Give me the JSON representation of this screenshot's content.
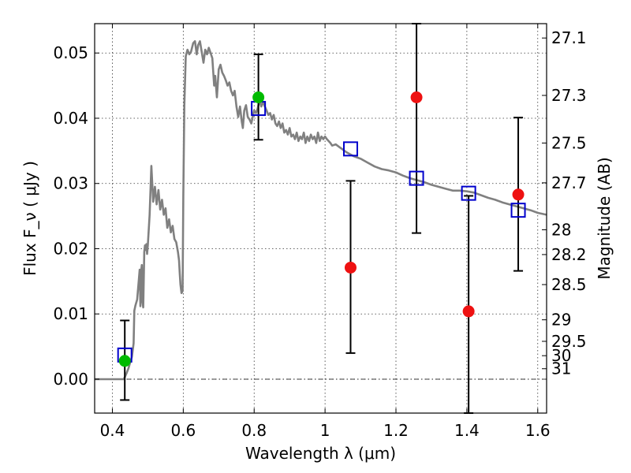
{
  "chart_data": {
    "type": "scatter",
    "title": "",
    "xlabel": "Wavelength  λ (μm)",
    "ylabel": "Flux  F_ν  ( μJy )",
    "ylabel_right": "Magnitude (AB)",
    "xlim": [
      0.35,
      1.625
    ],
    "ylim": [
      -0.0052,
      0.0545
    ],
    "xticks": [
      0.4,
      0.6,
      0.8,
      1.0,
      1.2,
      1.4,
      1.6
    ],
    "xtick_labels": [
      "0.4",
      "0.6",
      "0.8",
      "1",
      "1.2",
      "1.4",
      "1.6"
    ],
    "yticks": [
      0.0,
      0.01,
      0.02,
      0.03,
      0.04,
      0.05
    ],
    "ytick_labels": [
      "0.00",
      "0.01",
      "0.02",
      "0.03",
      "0.04",
      "0.05"
    ],
    "right_ticks": [
      {
        "label": "27.1",
        "flux": 0.0523
      },
      {
        "label": "27.3",
        "flux": 0.0435
      },
      {
        "label": "27.5",
        "flux": 0.0362
      },
      {
        "label": "27.7",
        "flux": 0.0301
      },
      {
        "label": "28",
        "flux": 0.0229
      },
      {
        "label": "28.2",
        "flux": 0.0191
      },
      {
        "label": "28.5",
        "flux": 0.0145
      },
      {
        "label": "29",
        "flux": 0.0091
      },
      {
        "label": "29.5",
        "flux": 0.0058
      },
      {
        "label": "30",
        "flux": 0.0036
      },
      {
        "label": "31",
        "flux": 0.0016
      }
    ],
    "grid": true,
    "zero_line": 0.0,
    "colors": {
      "model": "#808080",
      "model_photometry": "#0000cc",
      "detections": "#00bb00",
      "upper_limits": "#ee1111",
      "errorbar": "#000000"
    },
    "series": [
      {
        "kind": "line",
        "points": [
          [
            0.35,
            0.0
          ],
          [
            0.432,
            0.0
          ],
          [
            0.435,
            0.0003
          ],
          [
            0.44,
            0.0009
          ],
          [
            0.445,
            0.0016
          ],
          [
            0.45,
            0.0025
          ],
          [
            0.455,
            0.0034
          ],
          [
            0.46,
            0.0055
          ],
          [
            0.462,
            0.0105
          ],
          [
            0.465,
            0.0113
          ],
          [
            0.47,
            0.0122
          ],
          [
            0.475,
            0.0155
          ],
          [
            0.477,
            0.0168
          ],
          [
            0.479,
            0.0112
          ],
          [
            0.481,
            0.0165
          ],
          [
            0.483,
            0.0175
          ],
          [
            0.485,
            0.0118
          ],
          [
            0.487,
            0.011
          ],
          [
            0.49,
            0.0195
          ],
          [
            0.492,
            0.0205
          ],
          [
            0.494,
            0.0198
          ],
          [
            0.496,
            0.0207
          ],
          [
            0.498,
            0.0192
          ],
          [
            0.5,
            0.0205
          ],
          [
            0.505,
            0.0252
          ],
          [
            0.51,
            0.0327
          ],
          [
            0.515,
            0.0272
          ],
          [
            0.52,
            0.0295
          ],
          [
            0.525,
            0.0268
          ],
          [
            0.53,
            0.029
          ],
          [
            0.535,
            0.026
          ],
          [
            0.54,
            0.0275
          ],
          [
            0.545,
            0.0252
          ],
          [
            0.55,
            0.0262
          ],
          [
            0.555,
            0.0232
          ],
          [
            0.56,
            0.0245
          ],
          [
            0.565,
            0.0225
          ],
          [
            0.57,
            0.0235
          ],
          [
            0.575,
            0.0215
          ],
          [
            0.58,
            0.021
          ],
          [
            0.585,
            0.0195
          ],
          [
            0.588,
            0.0182
          ],
          [
            0.59,
            0.0162
          ],
          [
            0.592,
            0.0145
          ],
          [
            0.595,
            0.0132
          ],
          [
            0.598,
            0.0135
          ],
          [
            0.6,
            0.028
          ],
          [
            0.603,
            0.042
          ],
          [
            0.607,
            0.0495
          ],
          [
            0.612,
            0.0505
          ],
          [
            0.617,
            0.0498
          ],
          [
            0.622,
            0.0502
          ],
          [
            0.628,
            0.0515
          ],
          [
            0.633,
            0.0518
          ],
          [
            0.638,
            0.0498
          ],
          [
            0.642,
            0.0512
          ],
          [
            0.647,
            0.0518
          ],
          [
            0.652,
            0.0502
          ],
          [
            0.657,
            0.0485
          ],
          [
            0.662,
            0.0505
          ],
          [
            0.667,
            0.0498
          ],
          [
            0.672,
            0.0508
          ],
          [
            0.677,
            0.05
          ],
          [
            0.682,
            0.0492
          ],
          [
            0.687,
            0.045
          ],
          [
            0.69,
            0.0465
          ],
          [
            0.695,
            0.0432
          ],
          [
            0.7,
            0.0475
          ],
          [
            0.705,
            0.0482
          ],
          [
            0.71,
            0.047
          ],
          [
            0.715,
            0.0465
          ],
          [
            0.72,
            0.0458
          ],
          [
            0.725,
            0.045
          ],
          [
            0.73,
            0.0455
          ],
          [
            0.735,
            0.0442
          ],
          [
            0.74,
            0.0435
          ],
          [
            0.745,
            0.0442
          ],
          [
            0.75,
            0.0418
          ],
          [
            0.755,
            0.0402
          ],
          [
            0.76,
            0.0418
          ],
          [
            0.765,
            0.0395
          ],
          [
            0.768,
            0.0385
          ],
          [
            0.772,
            0.0412
          ],
          [
            0.777,
            0.042
          ],
          [
            0.782,
            0.0402
          ],
          [
            0.787,
            0.0398
          ],
          [
            0.792,
            0.0392
          ],
          [
            0.797,
            0.0405
          ],
          [
            0.8,
            0.0412
          ],
          [
            0.805,
            0.0408
          ],
          [
            0.81,
            0.0415
          ],
          [
            0.815,
            0.0428
          ],
          [
            0.82,
            0.0418
          ],
          [
            0.825,
            0.0425
          ],
          [
            0.83,
            0.0418
          ],
          [
            0.835,
            0.0412
          ],
          [
            0.84,
            0.0405
          ],
          [
            0.845,
            0.0408
          ],
          [
            0.85,
            0.0398
          ],
          [
            0.855,
            0.0405
          ],
          [
            0.86,
            0.0392
          ],
          [
            0.865,
            0.0388
          ],
          [
            0.87,
            0.0395
          ],
          [
            0.875,
            0.0385
          ],
          [
            0.88,
            0.0392
          ],
          [
            0.885,
            0.0378
          ],
          [
            0.89,
            0.0382
          ],
          [
            0.895,
            0.0375
          ],
          [
            0.9,
            0.0385
          ],
          [
            0.905,
            0.0372
          ],
          [
            0.91,
            0.0375
          ],
          [
            0.915,
            0.0368
          ],
          [
            0.92,
            0.0378
          ],
          [
            0.925,
            0.0365
          ],
          [
            0.93,
            0.0372
          ],
          [
            0.935,
            0.0368
          ],
          [
            0.94,
            0.0378
          ],
          [
            0.945,
            0.0362
          ],
          [
            0.95,
            0.0372
          ],
          [
            0.955,
            0.0365
          ],
          [
            0.96,
            0.0375
          ],
          [
            0.965,
            0.0368
          ],
          [
            0.97,
            0.0372
          ],
          [
            0.975,
            0.0362
          ],
          [
            0.98,
            0.0378
          ],
          [
            0.985,
            0.0365
          ],
          [
            0.99,
            0.0372
          ],
          [
            0.995,
            0.0368
          ],
          [
            1.0,
            0.0372
          ],
          [
            1.005,
            0.0368
          ],
          [
            1.01,
            0.0365
          ],
          [
            1.015,
            0.0362
          ],
          [
            1.02,
            0.0358
          ],
          [
            1.03,
            0.036
          ],
          [
            1.04,
            0.0356
          ],
          [
            1.05,
            0.0352
          ],
          [
            1.06,
            0.0348
          ],
          [
            1.07,
            0.0345
          ],
          [
            1.08,
            0.0342
          ],
          [
            1.1,
            0.0338
          ],
          [
            1.12,
            0.0332
          ],
          [
            1.14,
            0.0326
          ],
          [
            1.16,
            0.0322
          ],
          [
            1.18,
            0.032
          ],
          [
            1.2,
            0.0317
          ],
          [
            1.22,
            0.0312
          ],
          [
            1.24,
            0.0308
          ],
          [
            1.26,
            0.0305
          ],
          [
            1.28,
            0.0302
          ],
          [
            1.3,
            0.0298
          ],
          [
            1.32,
            0.0295
          ],
          [
            1.34,
            0.0292
          ],
          [
            1.36,
            0.0289
          ],
          [
            1.38,
            0.0289
          ],
          [
            1.4,
            0.0288
          ],
          [
            1.42,
            0.0286
          ],
          [
            1.44,
            0.0282
          ],
          [
            1.46,
            0.0278
          ],
          [
            1.48,
            0.0275
          ],
          [
            1.5,
            0.0271
          ],
          [
            1.52,
            0.0268
          ],
          [
            1.54,
            0.0265
          ],
          [
            1.56,
            0.0262
          ],
          [
            1.58,
            0.0259
          ],
          [
            1.6,
            0.0255
          ],
          [
            1.625,
            0.0252
          ]
        ]
      },
      {
        "kind": "squares",
        "points": [
          [
            0.435,
            0.0037
          ],
          [
            0.812,
            0.0415
          ],
          [
            1.072,
            0.0353
          ],
          [
            1.258,
            0.0308
          ],
          [
            1.405,
            0.0285
          ],
          [
            1.545,
            0.0259
          ]
        ]
      },
      {
        "kind": "errorbars",
        "bars": [
          {
            "x": 0.435,
            "low": -0.0032,
            "high": 0.009
          },
          {
            "x": 0.812,
            "low": 0.0367,
            "high": 0.0498
          },
          {
            "x": 1.072,
            "low": 0.004,
            "high": 0.0304
          },
          {
            "x": 1.258,
            "low": 0.0224,
            "high": 0.0545
          },
          {
            "x": 1.405,
            "low": -0.0052,
            "high": 0.0281
          },
          {
            "x": 1.545,
            "low": 0.0166,
            "high": 0.0401
          }
        ]
      },
      {
        "kind": "circles-green",
        "points": [
          [
            0.435,
            0.0028
          ],
          [
            0.812,
            0.0432
          ]
        ]
      },
      {
        "kind": "circles-red",
        "points": [
          [
            1.072,
            0.0171
          ],
          [
            1.258,
            0.0432
          ],
          [
            1.405,
            0.0104
          ],
          [
            1.545,
            0.0283
          ]
        ]
      }
    ]
  }
}
